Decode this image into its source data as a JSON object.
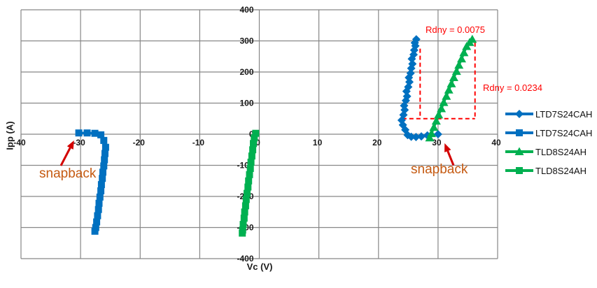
{
  "colors": {
    "blue": "#0070C0",
    "green": "#00B050",
    "red_dash": "#FF0000",
    "red_arrow": "#D30000",
    "snapback_text": "#C55A11",
    "gridline": "#878787",
    "tick_text": "#1a1a1a"
  },
  "legend": {
    "items": [
      {
        "label": "LTD7S24CAH",
        "marker": "diamond",
        "color": "#0070C0"
      },
      {
        "label": "LTD7S24CAH",
        "marker": "square",
        "color": "#0070C0"
      },
      {
        "label": "TLD8S24AH",
        "marker": "triangle",
        "color": "#00B050"
      },
      {
        "label": "TLD8S24AH",
        "marker": "square",
        "color": "#00B050"
      }
    ]
  },
  "chart_data": {
    "type": "line",
    "xlabel": "Vc (V)",
    "ylabel": "Ipp (A)",
    "xlim": [
      -40,
      40
    ],
    "ylim": [
      -400,
      400
    ],
    "x_ticks": [
      -40,
      -30,
      -20,
      -10,
      0,
      10,
      20,
      30,
      40
    ],
    "y_ticks": [
      -400,
      -300,
      -200,
      -100,
      0,
      100,
      200,
      300,
      400
    ],
    "grid": true,
    "legend_position": "right",
    "series": [
      {
        "name": "LTD7S24CAH",
        "marker": "diamond",
        "color": "#0070C0",
        "points": [
          [
            30,
            0
          ],
          [
            28.2,
            -4
          ],
          [
            27.2,
            -7
          ],
          [
            26.3,
            -9
          ],
          [
            25.5,
            -8
          ],
          [
            24.9,
            -3
          ],
          [
            24.5,
            14
          ],
          [
            24.1,
            30
          ],
          [
            23.9,
            45
          ],
          [
            24.2,
            62
          ],
          [
            24.4,
            78
          ],
          [
            24.3,
            92
          ],
          [
            24.6,
            108
          ],
          [
            24.8,
            122
          ],
          [
            24.7,
            138
          ],
          [
            25.0,
            152
          ],
          [
            25.2,
            168
          ],
          [
            25.1,
            182
          ],
          [
            25.4,
            196
          ],
          [
            25.5,
            212
          ],
          [
            25.7,
            226
          ],
          [
            25.6,
            242
          ],
          [
            25.9,
            256
          ],
          [
            26.0,
            270
          ],
          [
            26.2,
            284
          ],
          [
            26.1,
            294
          ],
          [
            26.35,
            305
          ]
        ]
      },
      {
        "name": "LTD7S24CAH",
        "marker": "square",
        "color": "#0070C0",
        "points": [
          [
            -30.3,
            4
          ],
          [
            -28.9,
            4
          ],
          [
            -27.6,
            3
          ],
          [
            -26.6,
            -2
          ],
          [
            -26.1,
            -20
          ],
          [
            -25.8,
            -42
          ],
          [
            -25.9,
            -62
          ],
          [
            -26.0,
            -82
          ],
          [
            -26.1,
            -102
          ],
          [
            -26.25,
            -122
          ],
          [
            -26.35,
            -142
          ],
          [
            -26.5,
            -162
          ],
          [
            -26.6,
            -182
          ],
          [
            -26.75,
            -202
          ],
          [
            -26.9,
            -222
          ],
          [
            -27.0,
            -242
          ],
          [
            -27.15,
            -262
          ],
          [
            -27.3,
            -282
          ],
          [
            -27.45,
            -300
          ],
          [
            -27.6,
            -312
          ]
        ]
      },
      {
        "name": "TLD8S24AH",
        "marker": "triangle",
        "color": "#00B050",
        "points": [
          [
            28.6,
            -12
          ],
          [
            28.9,
            2
          ],
          [
            29.3,
            22
          ],
          [
            29.7,
            42
          ],
          [
            30.1,
            62
          ],
          [
            30.55,
            82
          ],
          [
            30.95,
            102
          ],
          [
            31.4,
            122
          ],
          [
            31.8,
            142
          ],
          [
            32.25,
            162
          ],
          [
            32.65,
            182
          ],
          [
            33.1,
            202
          ],
          [
            33.5,
            222
          ],
          [
            33.95,
            242
          ],
          [
            34.35,
            262
          ],
          [
            34.8,
            282
          ],
          [
            35.3,
            295
          ],
          [
            35.75,
            305
          ]
        ]
      },
      {
        "name": "TLD8S24AH",
        "marker": "square",
        "color": "#00B050",
        "points": [
          [
            -0.6,
            3
          ],
          [
            -0.85,
            -12
          ],
          [
            -1.0,
            -30
          ],
          [
            -1.1,
            -50
          ],
          [
            -1.25,
            -70
          ],
          [
            -1.4,
            -90
          ],
          [
            -1.5,
            -110
          ],
          [
            -1.65,
            -130
          ],
          [
            -1.8,
            -150
          ],
          [
            -1.9,
            -170
          ],
          [
            -2.05,
            -190
          ],
          [
            -2.2,
            -210
          ],
          [
            -2.3,
            -230
          ],
          [
            -2.45,
            -250
          ],
          [
            -2.55,
            -270
          ],
          [
            -2.7,
            -290
          ],
          [
            -2.8,
            -308
          ],
          [
            -2.85,
            -318
          ]
        ]
      }
    ],
    "annotations": {
      "dashed_lines": [
        {
          "from": [
            27.0,
            275
          ],
          "to": [
            27.0,
            50
          ]
        },
        {
          "from": [
            24.0,
            50
          ],
          "to": [
            36.2,
            50
          ]
        },
        {
          "from": [
            36.2,
            295
          ],
          "to": [
            36.2,
            50
          ]
        }
      ],
      "arrows": [
        {
          "from": [
            -33.3,
            -101
          ],
          "to": [
            -31.1,
            -20
          ]
        },
        {
          "from": [
            32.6,
            -100
          ],
          "to": [
            31.1,
            -29
          ]
        }
      ],
      "labels": [
        {
          "id": "rdny1",
          "text": "Rdny = 0.0075",
          "color": "#FF0000"
        },
        {
          "id": "rdny2",
          "text": "Rdny = 0.0234",
          "color": "#FF0000"
        },
        {
          "id": "snapback_left",
          "text": "snapback",
          "color": "#C55A11"
        },
        {
          "id": "snapback_right",
          "text": "snapback",
          "color": "#C55A11"
        }
      ]
    }
  }
}
